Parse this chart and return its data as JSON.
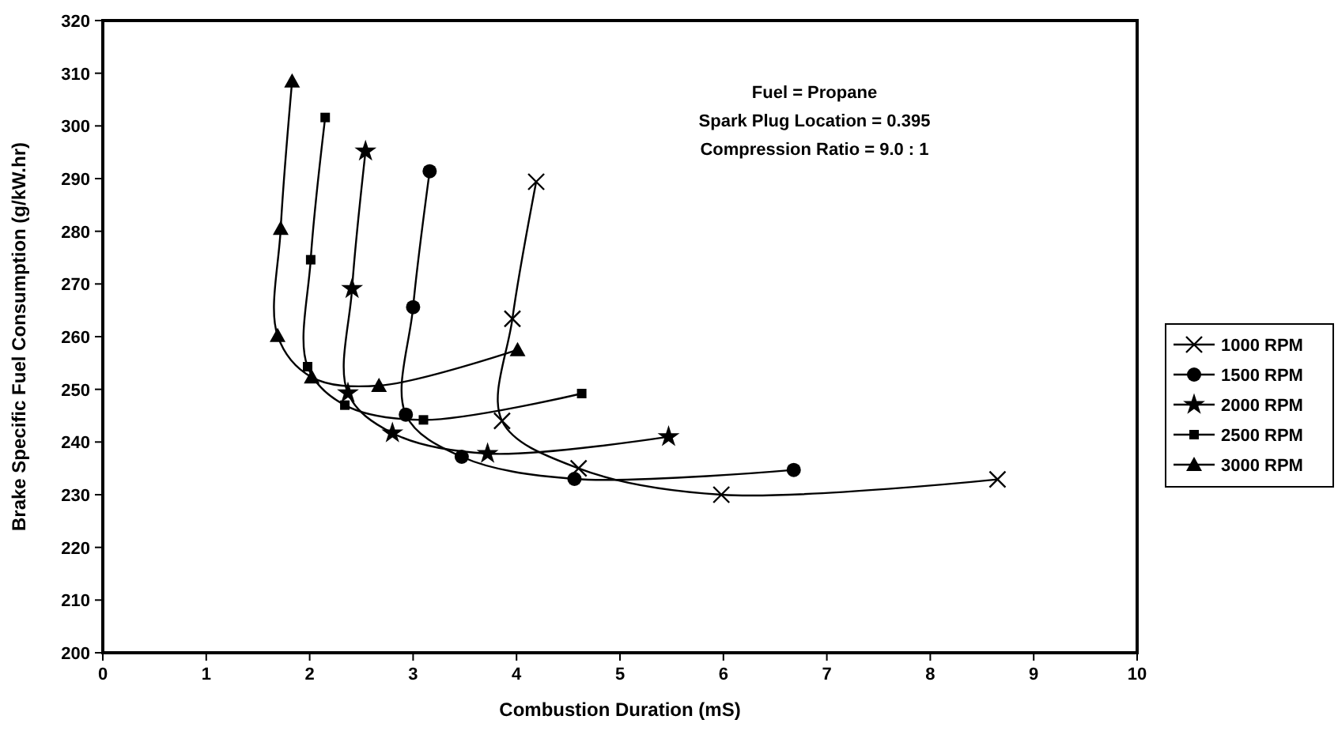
{
  "chart_data": {
    "type": "line",
    "xlabel": "Combustion Duration (mS)",
    "ylabel": "Brake Specific Fuel Consumption (g/kW.hr)",
    "annotations": [
      "Fuel = Propane",
      "Spark Plug Location = 0.395",
      "Compression Ratio = 9.0 : 1"
    ],
    "xlim": [
      0,
      10
    ],
    "xticks": [
      0,
      1,
      2,
      3,
      4,
      5,
      6,
      7,
      8,
      9,
      10
    ],
    "ylim": [
      200,
      320
    ],
    "yticks": [
      200,
      210,
      220,
      230,
      240,
      250,
      260,
      270,
      280,
      290,
      300,
      310,
      320
    ],
    "grid": false,
    "legend": "right",
    "line_style": "solid",
    "series": [
      {
        "name": "1000 RPM",
        "color": "#000000",
        "marker": "cross",
        "x": [
          4.19,
          3.96,
          3.86,
          4.6,
          5.98,
          8.65
        ],
        "values": [
          289.4,
          263.4,
          244.0,
          235.0,
          230.0,
          232.9
        ]
      },
      {
        "name": "1500 RPM",
        "color": "#000000",
        "marker": "circle",
        "x": [
          3.16,
          3.0,
          2.93,
          3.47,
          4.56,
          6.68
        ],
        "values": [
          291.4,
          265.6,
          245.2,
          237.2,
          233.0,
          234.7
        ]
      },
      {
        "name": "2000 RPM",
        "color": "#000000",
        "marker": "star",
        "x": [
          2.54,
          2.41,
          2.37,
          2.8,
          3.72,
          5.47
        ],
        "values": [
          295.2,
          269.1,
          249.3,
          241.7,
          237.8,
          241.0
        ]
      },
      {
        "name": "2500 RPM",
        "color": "#000000",
        "marker": "square",
        "x": [
          2.15,
          2.01,
          1.98,
          2.34,
          3.1,
          4.63
        ],
        "values": [
          301.6,
          274.6,
          254.3,
          247.0,
          244.2,
          249.2
        ]
      },
      {
        "name": "3000 RPM",
        "color": "#000000",
        "marker": "triangle",
        "x": [
          1.83,
          1.72,
          1.69,
          2.02,
          2.67,
          4.01
        ],
        "values": [
          308.5,
          280.5,
          260.2,
          252.3,
          250.7,
          257.5
        ]
      }
    ]
  }
}
